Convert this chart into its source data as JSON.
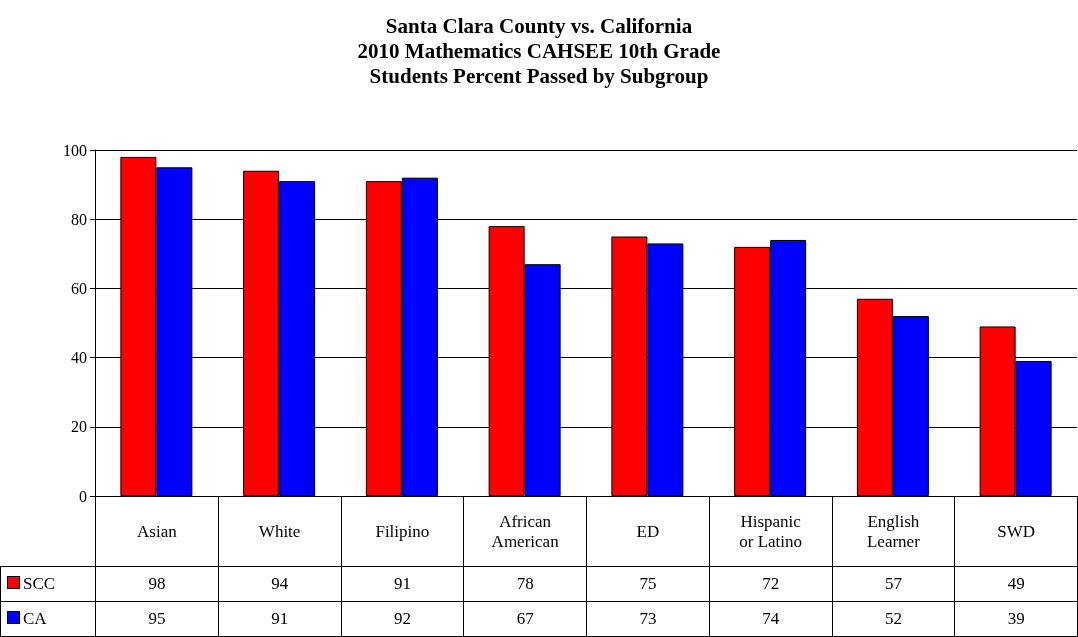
{
  "chart_data": {
    "type": "bar",
    "title": "Santa Clara County vs. California\n2010 Mathematics CAHSEE 10th Grade\nStudents Percent Passed by Subgroup",
    "categories": [
      "Asian",
      "White",
      "Filipino",
      "African American",
      "ED",
      "Hispanic or Latino",
      "English Learner",
      "SWD"
    ],
    "series": [
      {
        "name": "SCC",
        "color": "#ff0000",
        "values": [
          98,
          94,
          91,
          78,
          75,
          72,
          57,
          49
        ]
      },
      {
        "name": "CA",
        "color": "#0000ff",
        "values": [
          95,
          91,
          92,
          67,
          73,
          74,
          52,
          39
        ]
      }
    ],
    "ylim": [
      0,
      100
    ],
    "yticks": [
      0,
      20,
      40,
      60,
      80,
      100
    ],
    "grid": "y",
    "legend": "bottom left",
    "data_labels": true
  }
}
